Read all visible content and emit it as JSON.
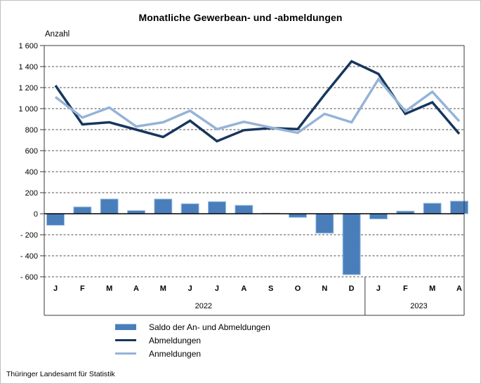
{
  "title": "Monatliche Gewerbean- und -abmeldungen",
  "y_axis_label": "Anzahl",
  "footer": "Thüringer Landesamt für Statistik",
  "colors": {
    "saldo_bar": "#4A7EBB",
    "saldo_bar_edge": "#9DC3E6",
    "abmeldungen_line": "#17365D",
    "anmeldungen_line": "#95B3D7",
    "gridline": "#4d4d4d",
    "zero_line": "#000000",
    "axis_frame": "#3a3a3a"
  },
  "legend": [
    {
      "label": "Saldo der An- und Abmeldungen",
      "swatch": "bar"
    },
    {
      "label": "Abmeldungen",
      "swatch": "line-dark"
    },
    {
      "label": "Anmeldungen",
      "swatch": "line-light"
    }
  ],
  "chart_data": {
    "type": "bar+line combo",
    "categories": [
      "J",
      "F",
      "M",
      "A",
      "M",
      "J",
      "J",
      "A",
      "S",
      "O",
      "N",
      "D",
      "J",
      "F",
      "M",
      "A"
    ],
    "year_groups": [
      {
        "label": "2022",
        "months": 12
      },
      {
        "label": "2023",
        "months": 4
      }
    ],
    "series": [
      {
        "name": "Saldo der An- und Abmeldungen",
        "type": "bar",
        "values": [
          -110,
          65,
          140,
          30,
          140,
          95,
          115,
          80,
          5,
          -35,
          -185,
          -580,
          -50,
          25,
          100,
          120
        ]
      },
      {
        "name": "Abmeldungen",
        "type": "line",
        "values": [
          1220,
          850,
          870,
          800,
          730,
          885,
          690,
          795,
          815,
          805,
          1135,
          1450,
          1330,
          950,
          1060,
          760
        ]
      },
      {
        "name": "Anmeldungen",
        "type": "line",
        "values": [
          1110,
          915,
          1010,
          830,
          870,
          980,
          805,
          875,
          820,
          770,
          950,
          870,
          1280,
          975,
          1160,
          880
        ]
      }
    ],
    "ylabel": "Anzahl",
    "ylim": [
      -600,
      1600
    ],
    "ytick_step": 200,
    "yticks": [
      1600,
      1400,
      1200,
      1000,
      800,
      600,
      400,
      200,
      0,
      -200,
      -400,
      -600
    ],
    "ytick_labels": [
      "1 600",
      "1 400",
      "1 200",
      "1 000",
      "800",
      "600",
      "400",
      "200",
      "0",
      "- 200",
      "- 400",
      "- 600"
    ],
    "grid": "horizontal dashed",
    "legend_position": "bottom-left"
  }
}
